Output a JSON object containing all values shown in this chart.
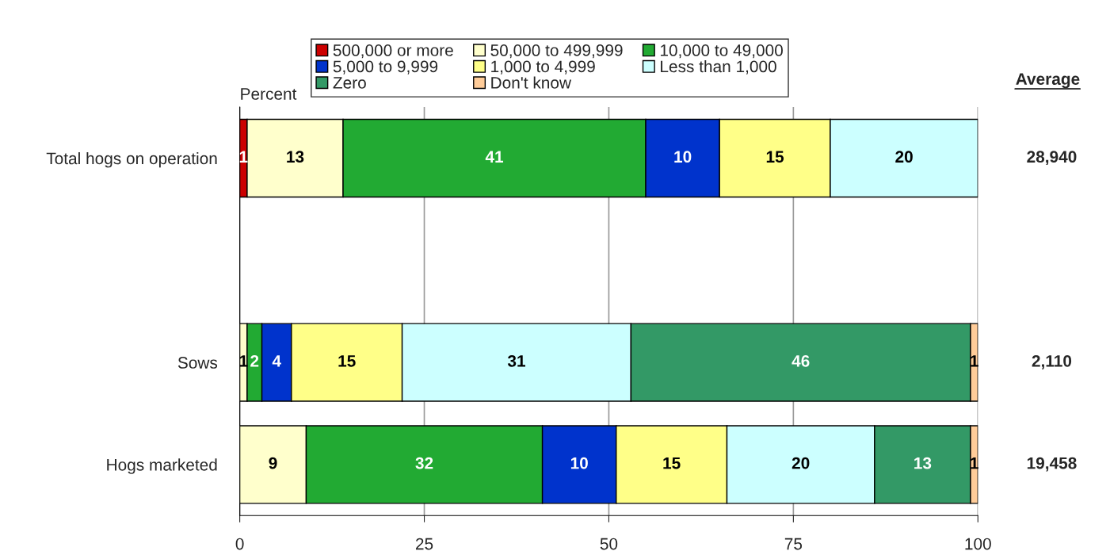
{
  "chart_data": {
    "type": "bar",
    "orientation": "horizontal",
    "stacked": true,
    "data_labels": true,
    "xlabel": "Percent",
    "categories": [
      "Total hogs on operation",
      null,
      "Sows",
      "Hogs marketed"
    ],
    "series": [
      {
        "name": "500,000 or more",
        "color": "#cc0000",
        "values": [
          1,
          null,
          null,
          null
        ]
      },
      {
        "name": "50,000 to 499,999",
        "color": "#ffffcc",
        "values": [
          13,
          null,
          1,
          9
        ]
      },
      {
        "name": "10,000 to 49,000",
        "color": "#22aa33",
        "values": [
          41,
          null,
          2,
          32
        ]
      },
      {
        "name": "5,000 to 9,999",
        "color": "#0033cc",
        "values": [
          10,
          null,
          4,
          10
        ]
      },
      {
        "name": "1,000 to 4,999",
        "color": "#ffff88",
        "values": [
          15,
          null,
          15,
          15
        ]
      },
      {
        "name": "Less than 1,000",
        "color": "#ccffff",
        "values": [
          20,
          null,
          31,
          20
        ]
      },
      {
        "name": "Zero",
        "color": "#339966",
        "values": [
          null,
          null,
          46,
          13
        ]
      },
      {
        "name": "Don't know",
        "color": "#ffcc99",
        "values": [
          null,
          null,
          1,
          1
        ]
      }
    ],
    "xlim": [
      0,
      100
    ],
    "xticks": [
      0,
      25,
      50,
      75,
      100
    ],
    "grid": "x",
    "legend": "top",
    "annotations": [
      "Average",
      "28,940",
      "2,110",
      "19,458"
    ]
  }
}
